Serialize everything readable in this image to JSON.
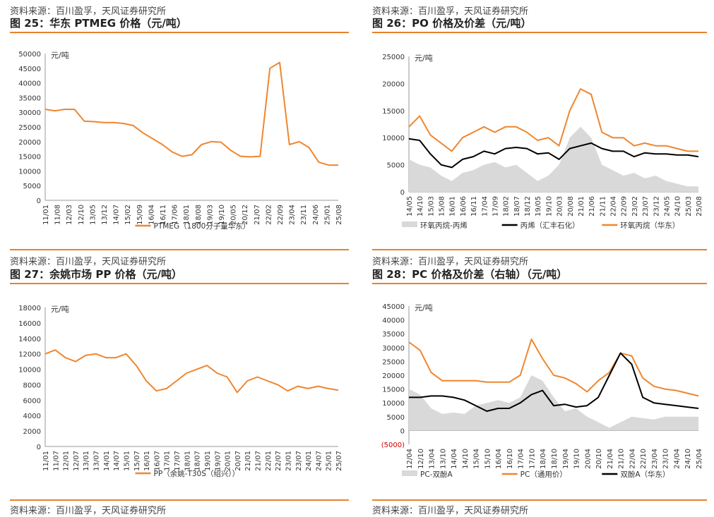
{
  "panels": [
    {
      "source": "资料来源：百川盈孚，天风证券研究所",
      "title": "图 25：华东 PTMEG 价格（元/吨）"
    },
    {
      "source": "资料来源：百川盈孚，天风证券研究所",
      "title": "图 26：PO 价格及价差（元/吨）"
    },
    {
      "source": "资料来源：百川盈孚，天风证券研究所",
      "title": "图 27：余姚市场 PP 价格（元/吨）"
    },
    {
      "source": "资料来源：百川盈孚，天风证券研究所",
      "title": "图 28：PC 价格及价差（右轴）（元/吨）"
    }
  ],
  "footer_sources": [
    "资料来源：百川盈孚，天风证券研究所",
    "资料来源：百川盈孚，天风证券研究所"
  ],
  "colors": {
    "accent": "#e8822a",
    "orange": "#f0862e",
    "black": "#000000",
    "gray": "#d9d9d9",
    "negative_tick": "#d00000"
  },
  "chart_data": [
    {
      "type": "line",
      "unit": "元/吨",
      "ylim": [
        0,
        50000
      ],
      "yticks": [
        "50000",
        "45000",
        "40000",
        "35000",
        "30000",
        "25000",
        "20000",
        "15000",
        "10000",
        "5000",
        "0"
      ],
      "xticks": [
        "11/01",
        "11/08",
        "12/03",
        "12/10",
        "13/05",
        "13/12",
        "14/07",
        "15/02",
        "15/09",
        "16/04",
        "16/11",
        "17/06",
        "18/01",
        "18/08",
        "19/03",
        "19/10",
        "20/05",
        "20/12",
        "21/07",
        "22/02",
        "22/09",
        "23/04",
        "23/11",
        "24/06",
        "25/01",
        "25/08"
      ],
      "series": [
        {
          "name": "PTMEG（1800分子量华东）",
          "color": "orange",
          "values": [
            31000,
            30500,
            31000,
            31000,
            27000,
            26800,
            26500,
            26500,
            26200,
            25500,
            23000,
            21000,
            19000,
            16500,
            15000,
            15500,
            19000,
            20000,
            19800,
            17000,
            15000,
            14800,
            15000,
            45000,
            47000,
            19000,
            20000,
            18000,
            13000,
            12000,
            12000
          ]
        }
      ]
    },
    {
      "type": "line+area",
      "unit": "元/吨",
      "ylim": [
        0,
        25000
      ],
      "yticks": [
        "25000",
        "20000",
        "15000",
        "10000",
        "5000",
        "0"
      ],
      "xticks": [
        "14/05",
        "14/10",
        "15/03",
        "15/08",
        "16/01",
        "16/06",
        "16/11",
        "17/04",
        "17/09",
        "18/02",
        "18/07",
        "18/12",
        "19/05",
        "19/10",
        "20/03",
        "20/08",
        "21/01",
        "21/06",
        "21/11",
        "22/04",
        "22/09",
        "23/02",
        "23/07",
        "23/12",
        "24/05",
        "24/10",
        "25/03",
        "25/08"
      ],
      "series": [
        {
          "name": "环氧丙烷-丙烯",
          "type": "area",
          "color": "gray",
          "values": [
            6000,
            5000,
            4500,
            3000,
            2000,
            3500,
            4000,
            5000,
            5500,
            4500,
            5000,
            3500,
            2000,
            3000,
            5000,
            10000,
            12000,
            10000,
            5000,
            4000,
            3000,
            3500,
            2500,
            3000,
            2000,
            1500,
            1000,
            1000
          ]
        },
        {
          "name": "丙烯（汇丰石化）",
          "type": "line",
          "color": "black",
          "values": [
            9800,
            9500,
            7000,
            5000,
            4500,
            6000,
            6500,
            7500,
            7000,
            8000,
            8200,
            8000,
            7000,
            7200,
            6000,
            8000,
            8500,
            9000,
            8000,
            7500,
            7500,
            6500,
            7200,
            7000,
            7000,
            6800,
            6800,
            6500
          ]
        },
        {
          "name": "环氧丙烷（华东）",
          "type": "line",
          "color": "orange",
          "values": [
            12000,
            14000,
            10500,
            9000,
            7500,
            10000,
            11000,
            12000,
            11000,
            12000,
            12000,
            11000,
            9500,
            10000,
            8500,
            15000,
            19000,
            18000,
            11000,
            10000,
            10000,
            8500,
            9000,
            8500,
            8500,
            8000,
            7500,
            7500
          ]
        }
      ]
    },
    {
      "type": "line",
      "unit": "元/吨",
      "ylim": [
        0,
        18000
      ],
      "yticks": [
        "18000",
        "16000",
        "14000",
        "12000",
        "10000",
        "8000",
        "6000",
        "4000",
        "2000",
        "0"
      ],
      "xticks": [
        "11/01",
        "11/07",
        "12/01",
        "12/07",
        "13/01",
        "13/07",
        "14/01",
        "14/07",
        "15/01",
        "15/07",
        "16/01",
        "16/07",
        "17/01",
        "17/07",
        "18/01",
        "18/07",
        "19/01",
        "19/07",
        "20/01",
        "20/07",
        "21/01",
        "21/07",
        "22/01",
        "22/07",
        "23/01",
        "23/07",
        "24/01",
        "24/07",
        "25/01",
        "25/07"
      ],
      "series": [
        {
          "name": "PP（余姚-T30S（绍兴））",
          "color": "orange",
          "values": [
            12000,
            12500,
            11500,
            11000,
            11800,
            12000,
            11500,
            11500,
            12000,
            10500,
            8500,
            7200,
            7500,
            8500,
            9500,
            10000,
            10500,
            9500,
            9000,
            7000,
            8500,
            9000,
            8500,
            8000,
            7200,
            7800,
            7500,
            7800,
            7500,
            7300
          ]
        }
      ]
    },
    {
      "type": "line+area",
      "unit": "元/吨",
      "ylim": [
        -5000,
        45000
      ],
      "yticks": [
        "45000",
        "40000",
        "35000",
        "30000",
        "25000",
        "20000",
        "15000",
        "10000",
        "5000",
        "0",
        "(5000)"
      ],
      "xticks": [
        "12/04",
        "12/10",
        "13/04",
        "13/10",
        "14/04",
        "14/10",
        "15/04",
        "15/10",
        "16/04",
        "16/10",
        "17/04",
        "17/10",
        "18/04",
        "18/10",
        "19/04",
        "19/10",
        "20/04",
        "20/10",
        "21/04",
        "21/10",
        "22/04",
        "22/10",
        "23/04",
        "23/10",
        "24/04",
        "24/10",
        "25/04"
      ],
      "series": [
        {
          "name": "PC-双酚A",
          "type": "area",
          "color": "gray",
          "values": [
            15000,
            13000,
            8000,
            6000,
            6500,
            6000,
            9000,
            10000,
            11000,
            10000,
            12000,
            20000,
            18000,
            12000,
            7000,
            8000,
            5000,
            3000,
            1000,
            3000,
            5000,
            4500,
            4000,
            5000,
            5000,
            5000,
            5000
          ]
        },
        {
          "name": "PC（通用价）",
          "type": "line",
          "color": "orange",
          "values": [
            32000,
            29000,
            21000,
            18000,
            18000,
            18000,
            18000,
            17500,
            17500,
            17500,
            20000,
            33000,
            26000,
            20000,
            19000,
            17000,
            14000,
            18000,
            21000,
            28000,
            27000,
            19000,
            16000,
            15000,
            14500,
            13500,
            12500
          ]
        },
        {
          "name": "双酚A（华东）",
          "type": "line",
          "color": "black",
          "values": [
            12000,
            12000,
            12500,
            12500,
            12000,
            11000,
            9000,
            7000,
            8000,
            8000,
            10000,
            13000,
            14500,
            9000,
            9500,
            8500,
            9000,
            12000,
            20000,
            28000,
            24000,
            12000,
            10000,
            9500,
            9000,
            8500,
            8000
          ]
        }
      ]
    }
  ]
}
